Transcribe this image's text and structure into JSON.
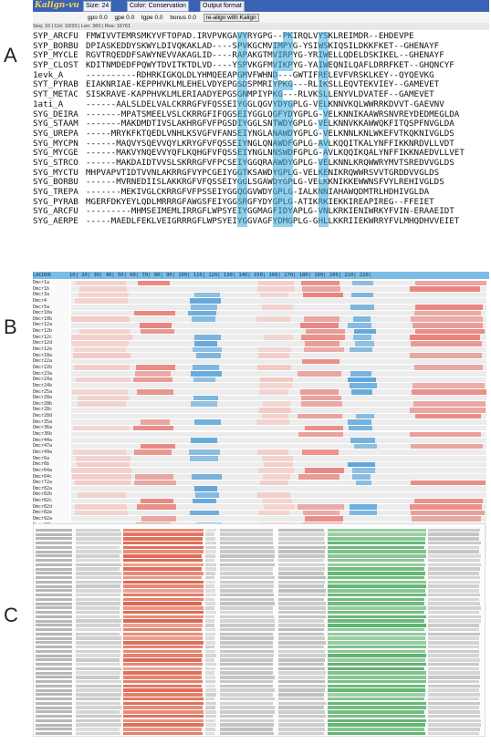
{
  "panels": {
    "a": "A",
    "b": "B",
    "c": "C"
  },
  "panel_a": {
    "app_title": "Kalign-vu",
    "size_select": "Size: 24",
    "color_select": "Color: Conservation",
    "output_select": "Output format",
    "options": {
      "gpo": "gpo 0.0",
      "gpe": "gpe 0.0",
      "tgpe": "tgpe 0.0",
      "bonus": "bonus 0.0",
      "realign": "re-align with Kalign"
    },
    "status": "Seq: 10 | Col: 10/20 | Len: 360 | Res: 16761",
    "rows": [
      {
        "name": "SYP_ARCFU",
        "seq": "FMWIVVTEMRSMKYVFTOPAD.IRVPVKGAVYRYGPG--PKIRQLVYSKLREIMDR--EHDEVPE"
      },
      {
        "name": "SYP_BORBU",
        "seq": "DPIASKEDDYSKWYLDIVQKAKLAD----SPVKGCMVIMPYG-YSIWSKIQSILDKKFKET--GHENAYF"
      },
      {
        "name": "SYP_MYCLE",
        "seq": "RGVTRQEDDFSAWYNEVVAKAGLID----RAPAKGTMVIRPYG-YRIWELLQDELDSKIKEL--GHENAYF"
      },
      {
        "name": "SYP_CLOST",
        "seq": "KDITNMDEDFPQWYTDVITKTDLVD----YSPVKGFMVIKPYG-YAIWEQNILQAFLDRRFKET--GHQNCYF"
      },
      {
        "name": "1evk_A",
        "seq": "----------RDHRKIGKQLDLYHMQEEAPGMVFWHND---GWTIFRELEVFVRSKLKEY--QYQEVKG"
      },
      {
        "name": "SYT_PYRAB",
        "seq": "EIAKNRIAE-KEPPHVKLMLEHELVDYEPGSDSPMRIYPKG---RLIKSLLEQVTEKVIEY--GAMEVET"
      },
      {
        "name": "SYT_METAC",
        "seq": "SISKRAVE-KAPPHVKLMLERIAADYEPGSGNMPIYPKG---RLVKSLLENYVLDVATEF--GAMEVET"
      },
      {
        "name": "1ati_A",
        "seq": "------AALSLDELVALCKRRGFVFQSSEIYGGLQGVYDYGPLG-VELKNNVKQLWWRRKDVVT-GAEVNV"
      },
      {
        "name": "SYG_DEIRA",
        "seq": "-------MPATSMEELVSLCKRRGFIFQGSEIYGGLQGFYDYGPLG-VELKNNIKAAWRSNVREYDEDMEGLDA"
      },
      {
        "name": "SYG_STAAM",
        "seq": "-------MAKDMDTIVSLAKHRGFVFPGSDIYGGLSNTWDYGPLG-VELKNNVKKAWWQKFITQSPFNVGLDA"
      },
      {
        "name": "SYG_UREPA",
        "seq": "-----MRYKFKTQEDLVNHLKSVGFVFANSEIYNGLANAWDYGPLG-VELKNNLKNLWKEFVTKQKNIVGLDS"
      },
      {
        "name": "SYG_MYCPN",
        "seq": "------MAQVYSQEVVQYLKRYGFVFQSSEIYNGLQNAWDFGPLG-AVLKQQITKALYNFFIKKNRDVLLVDT"
      },
      {
        "name": "SYG_MYCGE",
        "seq": "------MAKVYNQEVVYQFLKQHGFVFQSSEIYNGLNNSWDFGPLG-AVLKQQIKQALYNFFIKKNAEDVLLVET"
      },
      {
        "name": "SYG_STRCO",
        "seq": "------MAKDAIDTVVSLSKRRGFVFPCSEIYGGQRAAWDYGPLG-VELKNNLKRQWWRYMVTSREDVVGLDS"
      },
      {
        "name": "SYG_MYCTU",
        "seq": "MHPVAPVTIDTVVNLAKRRGFVYPCGEIYGGTKSAWDYGPLG-VELKENIKRQWWRSVVTGRDDVVGLDS"
      },
      {
        "name": "SYG_BORBU",
        "seq": "------MVRNEDIISLAKKRGFVFQSSEIYGGLSGAWDYGPLG-VELKKNIKKEWWNSFVYLREHIVGLDS"
      },
      {
        "name": "SYG_TREPA",
        "seq": "-------MEKIVGLCKRRGFVFPSSEIYGGQGGVWDYGPLG-IALKNNIAHAWQDMTRLHDHIVGLDA"
      },
      {
        "name": "SYG_PYRAB",
        "seq": "MGERFDKYEYLQDLMRRRGFAWGSFEIYGGSRGFYDYGPLG-ATIKRKIEKKIREAPIREG--FFEIET"
      },
      {
        "name": "SYG_ARCFU",
        "seq": "---------MHMSEIMEMLIRRGFLWPSYEIYGGMAGFIDYAPLG-VNLKRKIENIWRKYFVIN-ERAAEIDT"
      },
      {
        "name": "SYG_AERPE",
        "seq": "-----MAEDLFEKLVEIGRRRGFLWPSYEIYGGVAGFYDMGPLG-GHLLKKRIIEKWRRYFVLMHQDHVVEIET"
      }
    ]
  },
  "panel_b": {
    "header_label": "LACDDR",
    "ruler": "10|    20|    30|    40|    50|    60|    70|    80|    90|   100|   110|   120|   130|   140|   150|   160|   170|   180|   190|   200|   210|   220|",
    "names": [
      "Dmcr1a",
      "Dmcr1b",
      "Dmcr3a",
      "Dmcr4",
      "Dmcr5a",
      "Dmcr10a",
      "Dmcr10b",
      "Dmcr12a",
      "Dmcr12b",
      "Dmcr12c",
      "Dmcr12d",
      "Dmcr12e",
      "Dmcr18a",
      "Dmcr22a",
      "Dmcr22b",
      "Dmcr23a",
      "Dmcr24a",
      "Dmcr24b",
      "Dmcr25a",
      "Dmcr28a",
      "Dmcr28b",
      "Dmcr28c",
      "Dmcr28d",
      "Dmcr35a",
      "Dmcr36a",
      "Dmcr36b",
      "Dmcr44a",
      "Dmcr47a",
      "Dmcr49a",
      "Dmcr6a",
      "Dmcr6b",
      "Dmcr64a",
      "Dmcr64c",
      "Dmcr72a",
      "Dmcr82a",
      "Dmcr82b",
      "Dmcr82c",
      "Dmcr82d",
      "Dmcr82e",
      "Dmcr92a",
      "Dmcr92b",
      "Dmcr92c",
      "Dmcr95a",
      "Dmcr96a",
      "Dmcr97a",
      "Dmcr97b"
    ]
  },
  "colors": {
    "conserved": "#3aa9dc",
    "red": "#e8776f",
    "pink": "#f5c5c0",
    "blue": "#4f9fd9",
    "green": "#5fb46e",
    "panelC_red": "#e0664f"
  }
}
